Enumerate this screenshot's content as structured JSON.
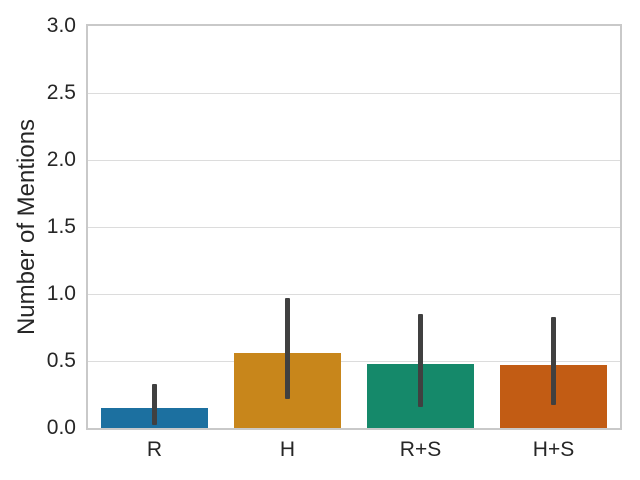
{
  "chart_data": {
    "type": "bar",
    "categories": [
      "R",
      "H",
      "R+S",
      "H+S"
    ],
    "values": [
      0.15,
      0.56,
      0.48,
      0.47
    ],
    "error_low": [
      0.02,
      0.22,
      0.16,
      0.17
    ],
    "error_high": [
      0.33,
      0.97,
      0.85,
      0.83
    ],
    "title": "",
    "xlabel": "",
    "ylabel": "Number of Mentions",
    "ylim": [
      0.0,
      3.0
    ],
    "yticks": [
      0.0,
      0.5,
      1.0,
      1.5,
      2.0,
      2.5,
      3.0
    ],
    "ytick_labels": [
      "0.0",
      "0.5",
      "1.0",
      "1.5",
      "2.0",
      "2.5",
      "3.0"
    ],
    "grid": true,
    "legend_position": "none",
    "bar_width_fraction": 0.8,
    "colors": {
      "bars": [
        "#1C70A0",
        "#C8861B",
        "#15896A",
        "#C25C14"
      ],
      "error_bar": "#404040",
      "grid": "#DCDCDC",
      "spine": "#C9C9C9",
      "text": "#262626",
      "background": "#FFFFFF"
    }
  }
}
